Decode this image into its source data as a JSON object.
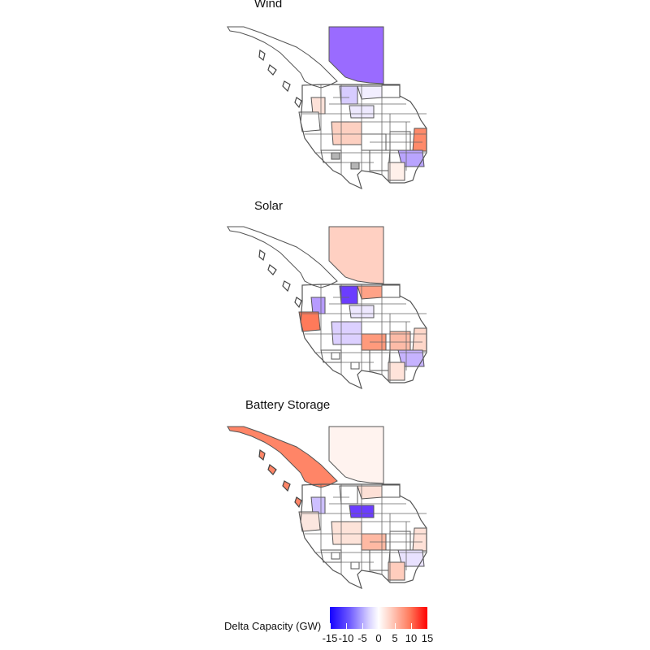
{
  "panels": {
    "wind": {
      "title": "Wind",
      "fills": {
        "alberta": "#9a6bff",
        "bc": "#ffffff",
        "s1": "#d7ccff",
        "s2": "#f2eeff",
        "s3": "#ffffff",
        "s4": "#fde1d8",
        "s5": "#ffffff",
        "s6": "#fdd0c1",
        "s7": "#ff8a6a",
        "s8": "#ffffff",
        "s9": "#b9a4ff",
        "s10": "#ffffff",
        "s11": "#fff0ea",
        "s12": "#eee9ff",
        "s13": "#ffffff",
        "s14": "#ffffff",
        "grey": "#b5b5b5"
      }
    },
    "solar": {
      "title": "Solar",
      "fills": {
        "alberta": "#ffd0c2",
        "bc": "#ffffff",
        "s1": "#6b3dff",
        "s2": "#ffa287",
        "s3": "#ffffff",
        "s4": "#b79bff",
        "s5": "#ff7a5a",
        "s6": "#dcd0ff",
        "s7": "#ffd7c9",
        "s8": "#fdbba7",
        "s9": "#c6b3ff",
        "s10": "#ffffff",
        "s11": "#ffe3da",
        "s12": "#eee8ff",
        "s13": "#ff9a7c",
        "s14": "#ffffff",
        "grey": "#ffffff"
      }
    },
    "battery": {
      "title": "Battery Storage",
      "fills": {
        "alberta": "#fff3ef",
        "bc": "#ff8567",
        "s1": "#ffffff",
        "s2": "#fde0d6",
        "s3": "#ffffff",
        "s4": "#cdbfff",
        "s5": "#fbe6df",
        "s6": "#fde3d9",
        "s7": "#ffe1d7",
        "s8": "#ffffff",
        "s9": "#e9e2ff",
        "s10": "#ffffff",
        "s11": "#ffcdbd",
        "s12": "#6b3dff",
        "s13": "#ffb9a3",
        "s14": "#ffffff",
        "grey": "#ffffff"
      }
    }
  },
  "legend": {
    "title": "Delta Capacity (GW)",
    "tick_labels": [
      "-15",
      "-10",
      "-5",
      "0",
      "5",
      "10",
      "15"
    ],
    "tick_values": [
      -15,
      -10,
      -5,
      0,
      5,
      10,
      15
    ],
    "range": [
      -15,
      15
    ],
    "colors": {
      "min": "#1400ff",
      "mid": "#ffffff",
      "max": "#ff0000"
    }
  }
}
